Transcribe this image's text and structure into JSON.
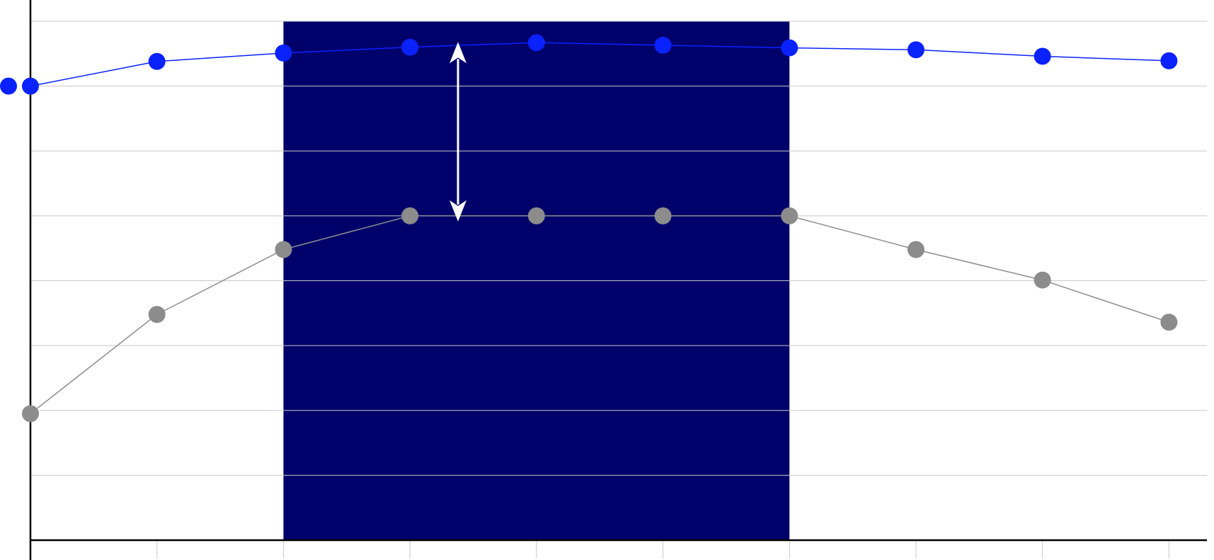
{
  "chart_data": {
    "type": "line",
    "title": "",
    "xlabel": "",
    "ylabel": "",
    "x": [
      0,
      1,
      2,
      3,
      4,
      5,
      6,
      7,
      8,
      9
    ],
    "xlim": [
      0,
      9.3
    ],
    "ylim": [
      0,
      8
    ],
    "grid": true,
    "y_gridlines": [
      1,
      2,
      3,
      4,
      5,
      6,
      7,
      8
    ],
    "x_ticks": [
      1,
      2,
      3,
      4,
      5,
      6,
      7,
      8,
      9
    ],
    "highlight_band": {
      "x_range": [
        2,
        6
      ],
      "y_range": [
        0,
        8
      ],
      "color": "#00006b"
    },
    "series": [
      {
        "color": "#0a22ff",
        "values": [
          7.0,
          7.38,
          7.51,
          7.6,
          7.67,
          7.63,
          7.59,
          7.56,
          7.46,
          7.39
        ]
      },
      {
        "color": "#8c8c8c",
        "values": [
          1.95,
          3.48,
          4.48,
          5.0,
          5.0,
          5.0,
          5.0,
          4.48,
          4.01,
          3.36
        ]
      }
    ],
    "annotation": {
      "type": "double-arrow",
      "x": 3.38,
      "y_from": 5.0,
      "y_to": 7.57,
      "color": "#ffffff"
    }
  }
}
